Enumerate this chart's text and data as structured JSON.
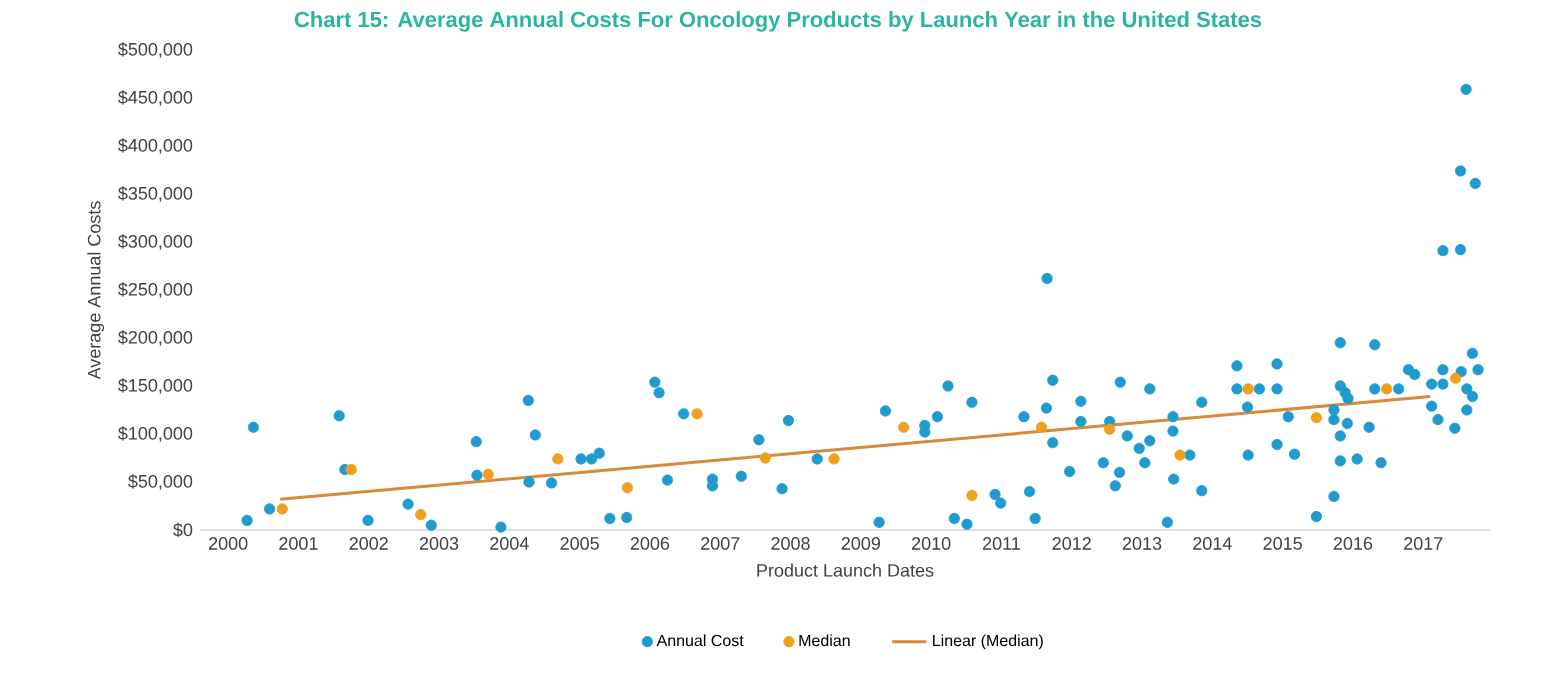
{
  "chart_data": {
    "type": "scatter",
    "title": "Chart 15: Average Annual Costs For Oncology Products by Launch Year in the United States",
    "xlabel": "Product Launch Dates",
    "ylabel": "Average Annual Costs",
    "xlim": [
      1999.6,
      2017.95
    ],
    "ylim": [
      0,
      500000
    ],
    "xticks": [
      2000,
      2001,
      2002,
      2003,
      2004,
      2005,
      2006,
      2007,
      2008,
      2009,
      2010,
      2011,
      2012,
      2013,
      2014,
      2015,
      2016,
      2017
    ],
    "yticks": [
      {
        "value": 0,
        "label": "$0"
      },
      {
        "value": 50000,
        "label": "$50,000"
      },
      {
        "value": 100000,
        "label": "$100,000"
      },
      {
        "value": 150000,
        "label": "$150,000"
      },
      {
        "value": 200000,
        "label": "$200,000"
      },
      {
        "value": 250000,
        "label": "$250,000"
      },
      {
        "value": 300000,
        "label": "$300,000"
      },
      {
        "value": 350000,
        "label": "$350,000"
      },
      {
        "value": 400000,
        "label": "$400,000"
      },
      {
        "value": 450000,
        "label": "$450,000"
      },
      {
        "value": 500000,
        "label": "$500,000"
      }
    ],
    "grid": false,
    "legend": "bottom",
    "series": [
      {
        "name": "Annual Cost",
        "marker": "circle",
        "color": "#1f9bcf",
        "x": [
          2000.27,
          2000.36,
          2000.59,
          2001.58,
          2001.66,
          2001.99,
          2002.56,
          2002.89,
          2003.53,
          2003.54,
          2003.88,
          2004.27,
          2004.37,
          2004.28,
          2004.6,
          2005.02,
          2005.17,
          2005.28,
          2005.43,
          2005.67,
          2006.07,
          2006.13,
          2006.48,
          2006.25,
          2006.89,
          2006.89,
          2007.3,
          2007.55,
          2007.88,
          2007.97,
          2008.38,
          2009.26,
          2009.35,
          2009.91,
          2009.91,
          2010.09,
          2010.24,
          2010.33,
          2010.51,
          2010.58,
          2010.91,
          2010.99,
          2011.32,
          2011.4,
          2011.48,
          2011.65,
          2011.73,
          2011.64,
          2011.73,
          2011.97,
          2012.13,
          2012.13,
          2012.45,
          2012.62,
          2012.68,
          2012.69,
          2012.54,
          2012.79,
          2012.96,
          2013.04,
          2013.11,
          2013.11,
          2013.44,
          2013.44,
          2013.45,
          2013.36,
          2013.68,
          2013.85,
          2013.85,
          2014.35,
          2014.35,
          2014.5,
          2014.67,
          2014.51,
          2014.92,
          2014.92,
          2014.92,
          2015.08,
          2015.17,
          2015.48,
          2015.73,
          2015.82,
          2015.82,
          2015.89,
          2015.93,
          2015.73,
          2015.73,
          2015.92,
          2015.82,
          2015.82,
          2016.06,
          2016.23,
          2016.31,
          2016.31,
          2016.4,
          2016.65,
          2016.79,
          2016.88,
          2017.12,
          2017.12,
          2017.21,
          2017.28,
          2017.53,
          2017.53,
          2017.61,
          2017.74,
          2017.28,
          2017.28,
          2017.45,
          2017.54,
          2017.62,
          2017.62,
          2017.7,
          2017.7,
          2017.78
        ],
        "values": [
          10000,
          107000,
          22000,
          119000,
          63000,
          10000,
          27000,
          5000,
          92000,
          57000,
          3000,
          135000,
          99000,
          50000,
          49000,
          74000,
          74000,
          80000,
          12000,
          13000,
          154000,
          143000,
          121000,
          52000,
          53000,
          46000,
          56000,
          94000,
          43000,
          114000,
          74000,
          8000,
          124000,
          109000,
          102000,
          118000,
          150000,
          12000,
          6000,
          133000,
          37000,
          28000,
          118000,
          40000,
          12000,
          262000,
          156000,
          127000,
          91000,
          61000,
          134000,
          113000,
          70000,
          46000,
          60000,
          154000,
          113000,
          98000,
          85000,
          70000,
          93000,
          147000,
          118000,
          103000,
          53000,
          8000,
          78000,
          133000,
          41000,
          171000,
          147000,
          128000,
          147000,
          78000,
          173000,
          147000,
          89000,
          118000,
          79000,
          14000,
          35000,
          195000,
          150000,
          143000,
          137000,
          125000,
          115000,
          111000,
          98000,
          72000,
          74000,
          107000,
          193000,
          147000,
          70000,
          147000,
          167000,
          162000,
          152000,
          129000,
          115000,
          291000,
          292000,
          374000,
          459000,
          361000,
          167000,
          152000,
          106000,
          165000,
          147000,
          125000,
          184000,
          139000,
          167000
        ]
      },
      {
        "name": "Median",
        "marker": "circle",
        "color": "#f0a01e",
        "x": [
          2000.77,
          2001.75,
          2002.74,
          2003.7,
          2004.69,
          2005.68,
          2006.67,
          2007.64,
          2008.62,
          2009.61,
          2010.58,
          2011.57,
          2012.54,
          2013.54,
          2014.51,
          2015.48,
          2016.48,
          2017.46
        ],
        "values": [
          22000,
          63000,
          16000,
          58000,
          74000,
          44000,
          121000,
          75000,
          74000,
          107000,
          36000,
          107000,
          105000,
          78000,
          147000,
          117000,
          147000,
          158000
        ]
      },
      {
        "name": "Linear (Median)",
        "type": "line",
        "marker": "none",
        "color": "#d9893b",
        "x": [
          2000.74,
          2017.1
        ],
        "values": [
          32000,
          139000
        ]
      }
    ]
  }
}
